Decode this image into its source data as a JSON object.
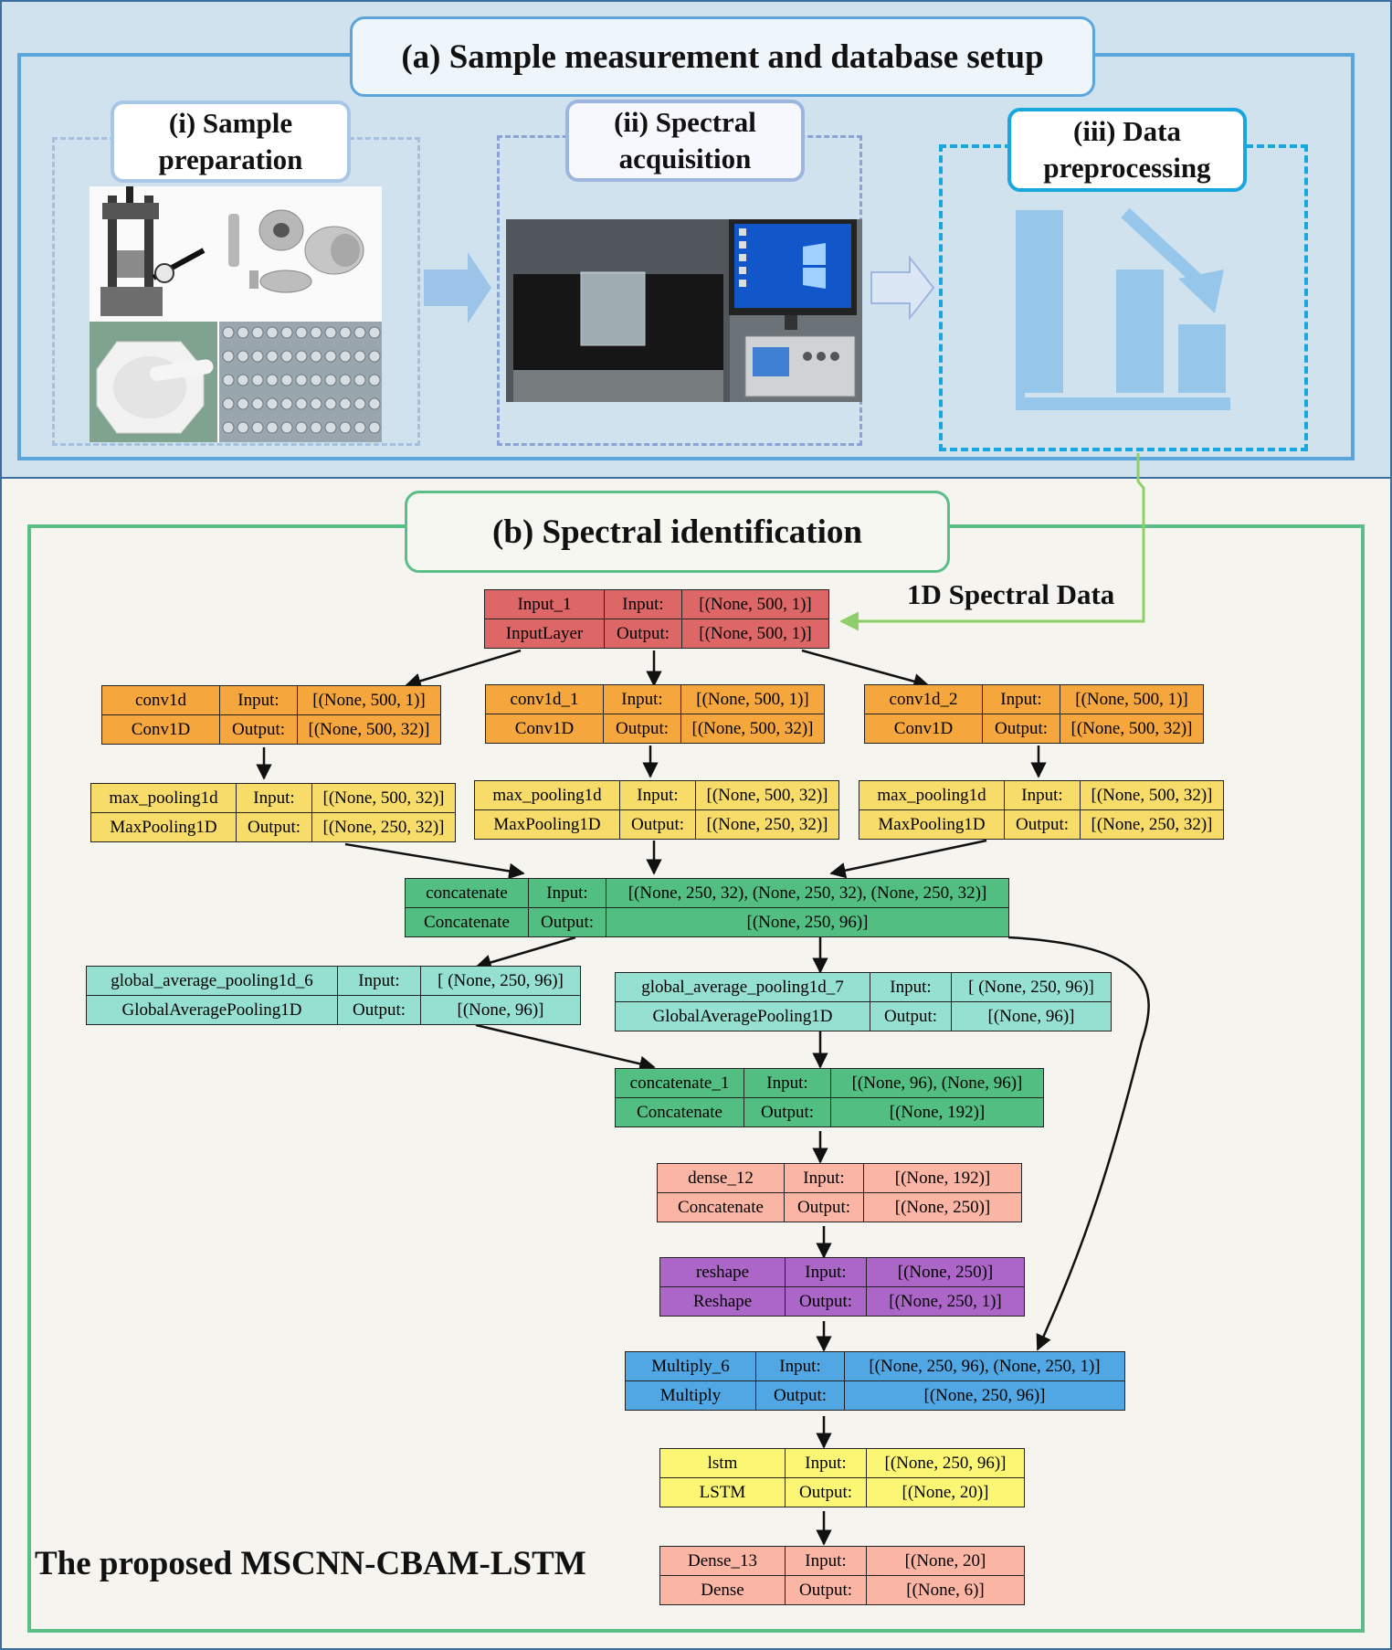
{
  "panel_a": {
    "title": "(a) Sample measurement and database setup",
    "steps": [
      {
        "label": "(i) Sample preparation"
      },
      {
        "label": "(ii) Spectral acquisition"
      },
      {
        "label": "(iii) Data preprocessing"
      }
    ]
  },
  "panel_b": {
    "title": "(b) Spectral  identification",
    "data_label": "1D Spectral Data",
    "model_label": "The proposed MSCNN-CBAM-LSTM"
  },
  "colors": {
    "input_layer": "#dd6767",
    "conv": "#f5a73e",
    "pool": "#f8dc6a",
    "concat": "#52be82",
    "gap": "#96e0d1",
    "dense": "#fbb5a5",
    "reshape": "#ab66c8",
    "multiply": "#50a7e3",
    "lstm": "#fbf674"
  },
  "nodes": {
    "input_1": {
      "name": "Input_1",
      "type": "InputLayer",
      "in_label": "Input:",
      "out_label": "Output:",
      "in": "[(None, 500, 1)]",
      "out": "[(None, 500, 1)]"
    },
    "conv1d": {
      "name": "conv1d",
      "type": "Conv1D",
      "in_label": "Input:",
      "out_label": "Output:",
      "in": "[(None, 500, 1)]",
      "out": "[(None, 500, 32)]"
    },
    "conv1d_1": {
      "name": "conv1d_1",
      "type": "Conv1D",
      "in_label": "Input:",
      "out_label": "Output:",
      "in": "[(None, 500, 1)]",
      "out": "[(None, 500, 32)]"
    },
    "conv1d_2": {
      "name": "conv1d_2",
      "type": "Conv1D",
      "in_label": "Input:",
      "out_label": "Output:",
      "in": "[(None, 500, 1)]",
      "out": "[(None, 500, 32)]"
    },
    "pool_a": {
      "name": "max_pooling1d",
      "type": "MaxPooling1D",
      "in_label": "Input:",
      "out_label": "Output:",
      "in": "[(None, 500, 32)]",
      "out": "[(None, 250, 32)]"
    },
    "pool_b": {
      "name": "max_pooling1d",
      "type": "MaxPooling1D",
      "in_label": "Input:",
      "out_label": "Output:",
      "in": "[(None, 500, 32)]",
      "out": "[(None, 250, 32)]"
    },
    "pool_c": {
      "name": "max_pooling1d",
      "type": "MaxPooling1D",
      "in_label": "Input:",
      "out_label": "Output:",
      "in": "[(None, 500, 32)]",
      "out": "[(None, 250, 32)]"
    },
    "concatenate": {
      "name": "concatenate",
      "type": "Concatenate",
      "in_label": "Input:",
      "out_label": "Output:",
      "in": "[(None, 250, 32), (None, 250, 32), (None, 250, 32)]",
      "out": "[(None, 250, 96)]"
    },
    "gap_6": {
      "name": "global_average_pooling1d_6",
      "type": "GlobalAveragePooling1D",
      "in_label": "Input:",
      "out_label": "Output:",
      "in": "[ (None, 250, 96)]",
      "out": "[(None, 96)]"
    },
    "gap_7": {
      "name": "global_average_pooling1d_7",
      "type": "GlobalAveragePooling1D",
      "in_label": "Input:",
      "out_label": "Output:",
      "in": "[ (None, 250, 96)]",
      "out": "[(None, 96)]"
    },
    "concatenate_1": {
      "name": "concatenate_1",
      "type": "Concatenate",
      "in_label": "Input:",
      "out_label": "Output:",
      "in": "[(None, 96), (None, 96)]",
      "out": "[(None, 192)]"
    },
    "dense_12": {
      "name": "dense_12",
      "type": "Concatenate",
      "in_label": "Input:",
      "out_label": "Output:",
      "in": "[(None, 192)]",
      "out": "[(None, 250)]"
    },
    "reshape": {
      "name": "reshape",
      "type": "Reshape",
      "in_label": "Input:",
      "out_label": "Output:",
      "in": "[(None, 250)]",
      "out": "[(None, 250, 1)]"
    },
    "multiply_6": {
      "name": "Multiply_6",
      "type": "Multiply",
      "in_label": "Input:",
      "out_label": "Output:",
      "in": "[(None, 250, 96), (None, 250, 1)]",
      "out": "[(None, 250, 96)]"
    },
    "lstm": {
      "name": "lstm",
      "type": "LSTM",
      "in_label": "Input:",
      "out_label": "Output:",
      "in": "[(None, 250, 96)]",
      "out": "[(None, 20)]"
    },
    "dense_13": {
      "name": "Dense_13",
      "type": "Dense",
      "in_label": "Input:",
      "out_label": "Output:",
      "in": "[(None, 20]",
      "out": "[(None, 6)]"
    }
  }
}
